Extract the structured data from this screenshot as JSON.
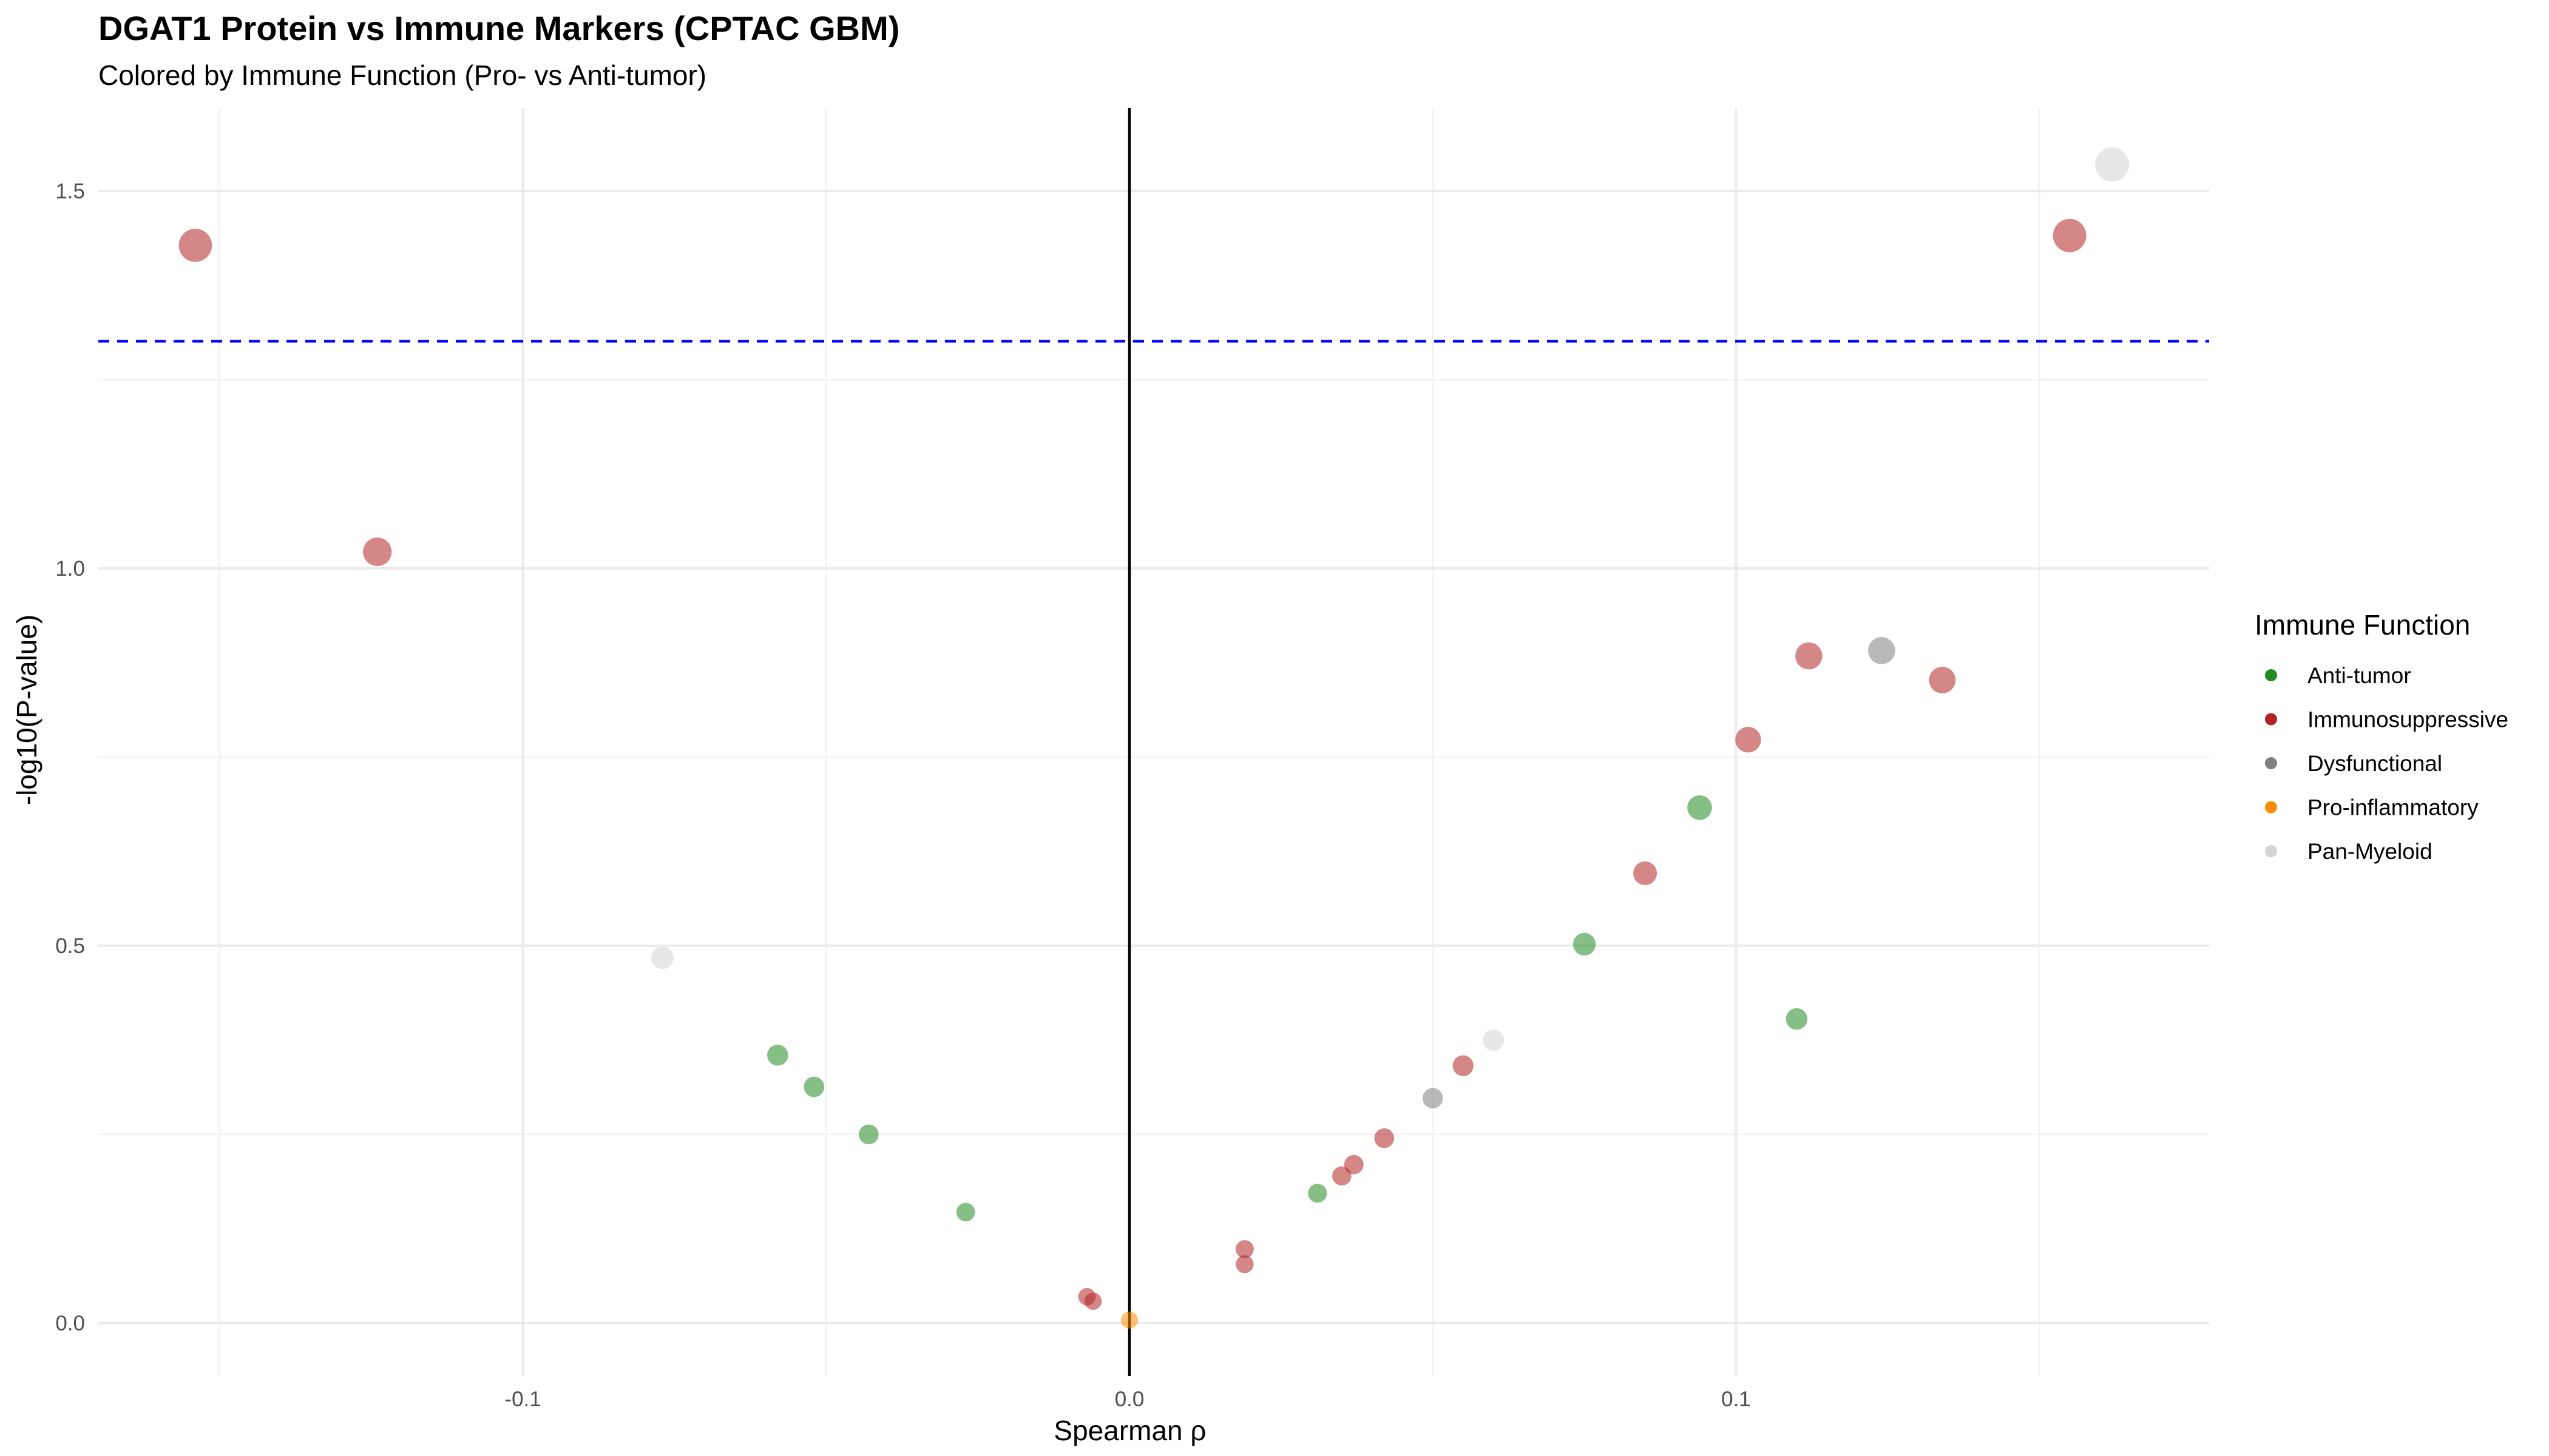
{
  "chart_data": {
    "type": "scatter",
    "title": "DGAT1 Protein vs Immune Markers (CPTAC GBM)",
    "subtitle": "Colored by Immune Function (Pro- vs Anti-tumor)",
    "xlabel": "Spearman ρ",
    "ylabel": "-log10(P-value)",
    "xlim": [
      -0.17,
      0.178
    ],
    "ylim": [
      -0.07,
      1.61
    ],
    "x_ticks": [
      -0.1,
      0.0,
      0.1
    ],
    "x_tick_labels": [
      "-0.1",
      "0.0",
      "0.1"
    ],
    "y_ticks": [
      0.0,
      0.5,
      1.0,
      1.5
    ],
    "y_tick_labels": [
      "0.0",
      "0.5",
      "1.0",
      "1.5"
    ],
    "grid": true,
    "vline_x": 0.0,
    "significance_line": {
      "y": 1.301,
      "color": "#0000ff",
      "style": "dashed"
    },
    "legend": {
      "title": "Immune Function",
      "position": "right",
      "entries": [
        {
          "label": "Anti-tumor",
          "color": "#228B22"
        },
        {
          "label": "Immunosuppressive",
          "color": "#B22222"
        },
        {
          "label": "Dysfunctional",
          "color": "#808080"
        },
        {
          "label": "Pro-inflammatory",
          "color": "#FF8C00"
        },
        {
          "label": "Pan-Myeloid",
          "color": "#D3D3D3"
        }
      ]
    },
    "series": [
      {
        "name": "Anti-tumor",
        "color": "#228B22",
        "points": [
          {
            "x": -0.058,
            "y": 0.355
          },
          {
            "x": -0.052,
            "y": 0.313
          },
          {
            "x": -0.043,
            "y": 0.25
          },
          {
            "x": -0.027,
            "y": 0.147
          },
          {
            "x": 0.031,
            "y": 0.172
          },
          {
            "x": 0.075,
            "y": 0.502
          },
          {
            "x": 0.094,
            "y": 0.683
          },
          {
            "x": 0.11,
            "y": 0.403
          }
        ]
      },
      {
        "name": "Immunosuppressive",
        "color": "#B22222",
        "points": [
          {
            "x": -0.154,
            "y": 1.428
          },
          {
            "x": -0.124,
            "y": 1.022
          },
          {
            "x": -0.007,
            "y": 0.035
          },
          {
            "x": -0.006,
            "y": 0.029
          },
          {
            "x": 0.019,
            "y": 0.098
          },
          {
            "x": 0.019,
            "y": 0.078
          },
          {
            "x": 0.035,
            "y": 0.195
          },
          {
            "x": 0.037,
            "y": 0.21
          },
          {
            "x": 0.042,
            "y": 0.245
          },
          {
            "x": 0.055,
            "y": 0.341
          },
          {
            "x": 0.085,
            "y": 0.596
          },
          {
            "x": 0.102,
            "y": 0.773
          },
          {
            "x": 0.112,
            "y": 0.884
          },
          {
            "x": 0.134,
            "y": 0.852
          },
          {
            "x": 0.155,
            "y": 1.441
          }
        ]
      },
      {
        "name": "Dysfunctional",
        "color": "#808080",
        "points": [
          {
            "x": 0.05,
            "y": 0.298
          },
          {
            "x": 0.124,
            "y": 0.891
          }
        ]
      },
      {
        "name": "Pro-inflammatory",
        "color": "#FF8C00",
        "points": [
          {
            "x": 0.0,
            "y": 0.004
          }
        ]
      },
      {
        "name": "Pan-Myeloid",
        "color": "#D3D3D3",
        "points": [
          {
            "x": -0.077,
            "y": 0.484
          },
          {
            "x": 0.06,
            "y": 0.375
          },
          {
            "x": 0.162,
            "y": 1.535
          }
        ]
      }
    ]
  }
}
